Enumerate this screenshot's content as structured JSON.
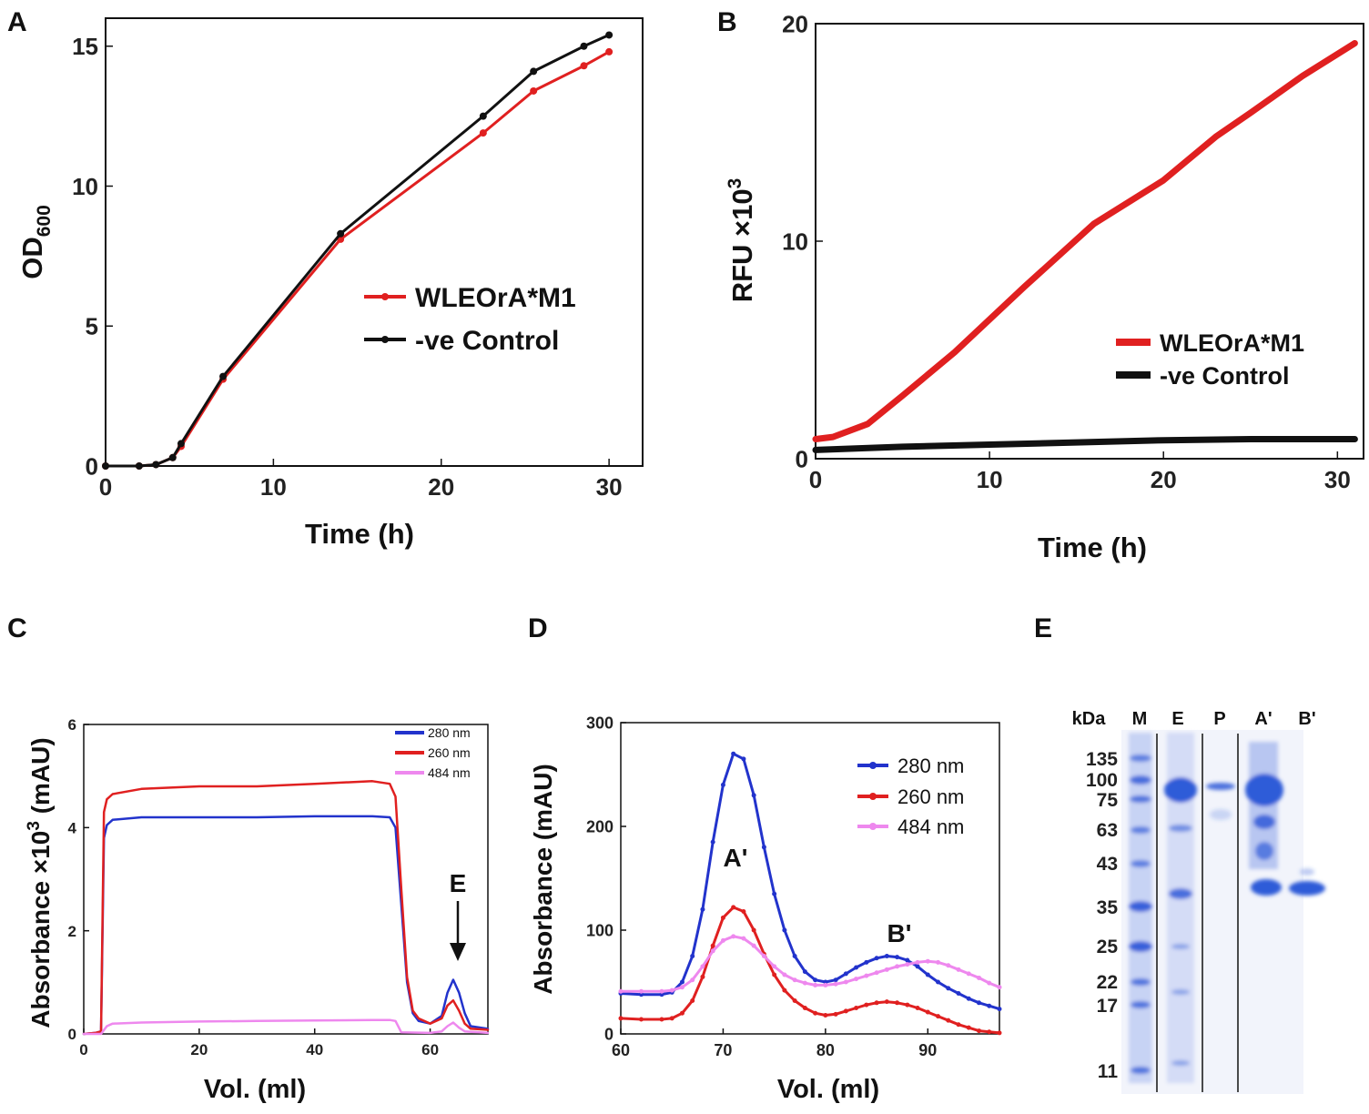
{
  "colors": {
    "red": "#e02020",
    "black": "#111111",
    "blue": "#2233cc",
    "pink": "#ee88ee",
    "gelBlue": "#2f5bd8"
  },
  "panels": {
    "a": "A",
    "b": "B",
    "c": "C",
    "d": "D",
    "e": "E"
  },
  "chart_data": [
    {
      "id": "A",
      "type": "line",
      "xlabel": "Time (h)",
      "ylabel": "OD",
      "ylabel_sub": "600",
      "xlim": [
        0,
        32
      ],
      "ylim": [
        0,
        16
      ],
      "xticks": [
        0,
        10,
        20,
        30
      ],
      "yticks": [
        0,
        5,
        10,
        15
      ],
      "series": [
        {
          "name": "WLEOrA*M1",
          "color": "#e02020",
          "x": [
            0,
            2,
            3,
            4,
            4.5,
            7,
            14,
            22.5,
            25.5,
            28.5,
            30
          ],
          "y": [
            0,
            0,
            0.05,
            0.3,
            0.7,
            3.1,
            8.1,
            11.9,
            13.4,
            14.3,
            14.8
          ]
        },
        {
          "name": "-ve Control",
          "color": "#111111",
          "x": [
            0,
            2,
            3,
            4,
            4.5,
            7,
            14,
            22.5,
            25.5,
            28.5,
            30
          ],
          "y": [
            0,
            0,
            0.05,
            0.3,
            0.8,
            3.2,
            8.3,
            12.5,
            14.1,
            15.0,
            15.4
          ]
        }
      ],
      "legend": "center-right"
    },
    {
      "id": "B",
      "type": "line",
      "xlabel": "Time (h)",
      "ylabel": "RFU ×10",
      "ylabel_sup": "3",
      "xlim": [
        0,
        31.5
      ],
      "ylim": [
        0,
        20
      ],
      "xticks": [
        0,
        10,
        20,
        30
      ],
      "yticks": [
        0,
        10,
        20
      ],
      "series": [
        {
          "name": "WLEOrA*M1",
          "color": "#e02020",
          "x": [
            0,
            1,
            3,
            5,
            8,
            12,
            16,
            20,
            23,
            25,
            28,
            31
          ],
          "y": [
            0.9,
            1.0,
            1.6,
            2.9,
            4.9,
            7.9,
            10.8,
            12.8,
            14.8,
            15.9,
            17.6,
            19.1
          ]
        },
        {
          "name": "-ve Control",
          "color": "#111111",
          "x": [
            0,
            5,
            10,
            15,
            20,
            25,
            31
          ],
          "y": [
            0.4,
            0.55,
            0.65,
            0.75,
            0.85,
            0.9,
            0.9
          ]
        }
      ],
      "legend": "bottom-right"
    },
    {
      "id": "C",
      "type": "line",
      "xlabel": "Vol. (ml)",
      "ylabel": "Absorbance ×10",
      "ylabel_sup": "3",
      "ylabel_unit": " (mAU)",
      "xlim": [
        0,
        70
      ],
      "ylim": [
        0,
        6
      ],
      "xticks": [
        0,
        20,
        40,
        60
      ],
      "yticks": [
        0,
        2,
        4,
        6
      ],
      "annotation": "E",
      "series": [
        {
          "name": "280 nm",
          "color": "#2233cc",
          "x": [
            0,
            2,
            3,
            3.5,
            4,
            5,
            10,
            20,
            30,
            40,
            50,
            53,
            54,
            55,
            56,
            57,
            58,
            60,
            62,
            63,
            64,
            65,
            66,
            67,
            70
          ],
          "y": [
            0,
            0.02,
            0.05,
            3.8,
            4.05,
            4.15,
            4.2,
            4.2,
            4.2,
            4.22,
            4.22,
            4.2,
            4.0,
            2.5,
            1.0,
            0.4,
            0.25,
            0.2,
            0.35,
            0.8,
            1.05,
            0.8,
            0.4,
            0.15,
            0.1
          ]
        },
        {
          "name": "260 nm",
          "color": "#e02020",
          "x": [
            0,
            2,
            3,
            3.5,
            4,
            5,
            10,
            20,
            30,
            40,
            50,
            53,
            54,
            55,
            56,
            57,
            58,
            60,
            62,
            63,
            64,
            65,
            66,
            67,
            70
          ],
          "y": [
            0,
            0.02,
            0.05,
            4.3,
            4.55,
            4.65,
            4.75,
            4.8,
            4.8,
            4.85,
            4.9,
            4.85,
            4.6,
            2.8,
            1.1,
            0.45,
            0.3,
            0.2,
            0.3,
            0.55,
            0.65,
            0.45,
            0.2,
            0.1,
            0.08
          ]
        },
        {
          "name": "484 nm",
          "color": "#ee88ee",
          "x": [
            0,
            3,
            4,
            5,
            10,
            20,
            30,
            40,
            50,
            53,
            54,
            55,
            60,
            62,
            63,
            64,
            65,
            66,
            70
          ],
          "y": [
            0,
            0,
            0.15,
            0.2,
            0.22,
            0.24,
            0.25,
            0.26,
            0.27,
            0.27,
            0.25,
            0.03,
            0.02,
            0.05,
            0.15,
            0.22,
            0.12,
            0.05,
            0.02
          ]
        }
      ],
      "legend": "top-right"
    },
    {
      "id": "D",
      "type": "line",
      "xlabel": "Vol. (ml)",
      "ylabel": "Absorbance (mAU)",
      "xlim": [
        60,
        97
      ],
      "ylim": [
        0,
        300
      ],
      "xticks": [
        60,
        70,
        80,
        90
      ],
      "yticks": [
        0,
        100,
        200,
        300
      ],
      "annotations": [
        "A'",
        "B'"
      ],
      "series": [
        {
          "name": "280 nm",
          "color": "#2233cc",
          "x": [
            60,
            62,
            64,
            65,
            66,
            67,
            68,
            69,
            70,
            71,
            72,
            73,
            74,
            75,
            76,
            77,
            78,
            79,
            80,
            81,
            82,
            83,
            84,
            85,
            86,
            87,
            88,
            89,
            90,
            91,
            92,
            93,
            94,
            95,
            96,
            97
          ],
          "y": [
            39,
            38,
            38,
            40,
            50,
            75,
            120,
            185,
            240,
            270,
            265,
            230,
            180,
            135,
            100,
            75,
            60,
            52,
            50,
            52,
            58,
            64,
            69,
            73,
            75,
            74,
            71,
            65,
            57,
            50,
            44,
            39,
            34,
            30,
            27,
            24
          ]
        },
        {
          "name": "260 nm",
          "color": "#e02020",
          "x": [
            60,
            62,
            64,
            65,
            66,
            67,
            68,
            69,
            70,
            71,
            72,
            73,
            74,
            75,
            76,
            77,
            78,
            79,
            80,
            81,
            82,
            83,
            84,
            85,
            86,
            87,
            88,
            89,
            90,
            91,
            92,
            93,
            94,
            95,
            96,
            97
          ],
          "y": [
            15,
            14,
            14,
            15,
            20,
            32,
            55,
            85,
            112,
            122,
            118,
            100,
            77,
            57,
            42,
            32,
            25,
            20,
            18,
            19,
            22,
            25,
            28,
            30,
            31,
            30,
            28,
            25,
            21,
            17,
            13,
            9,
            6,
            3,
            2,
            1
          ]
        },
        {
          "name": "484 nm",
          "color": "#ee88ee",
          "x": [
            60,
            62,
            64,
            65,
            66,
            67,
            68,
            69,
            70,
            71,
            72,
            73,
            74,
            75,
            76,
            77,
            78,
            79,
            80,
            81,
            82,
            83,
            84,
            85,
            86,
            87,
            88,
            89,
            90,
            91,
            92,
            93,
            94,
            95,
            96,
            97
          ],
          "y": [
            41,
            41,
            41,
            42,
            45,
            52,
            65,
            80,
            90,
            94,
            92,
            85,
            75,
            65,
            57,
            52,
            49,
            47,
            47,
            48,
            50,
            53,
            56,
            59,
            62,
            65,
            67,
            69,
            70,
            69,
            66,
            62,
            58,
            54,
            49,
            45
          ]
        }
      ],
      "legend": "top-right"
    }
  ],
  "gel": {
    "unit_label": "kDa",
    "lanes": [
      "M",
      "E",
      "P",
      "A'",
      "B'"
    ],
    "markers": [
      "135",
      "100",
      "75",
      "63",
      "43",
      "35",
      "25",
      "22",
      "17",
      "11"
    ]
  }
}
